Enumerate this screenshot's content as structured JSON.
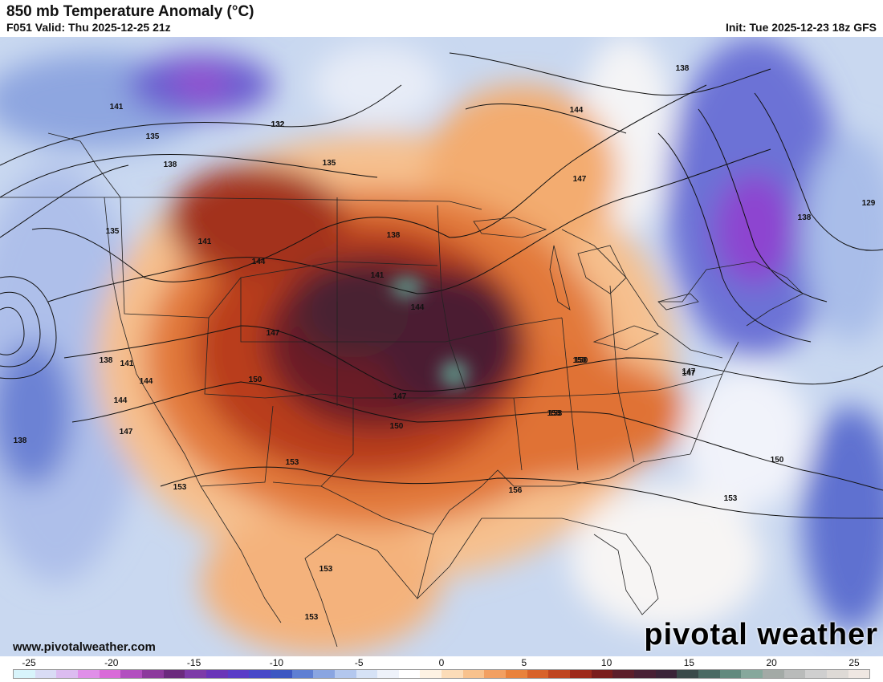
{
  "header": {
    "title": "850 mb Temperature Anomaly (°C)",
    "valid": "F051 Valid: Thu 2025-12-25 21z",
    "init": "Init: Tue 2025-12-23 18z GFS"
  },
  "footer": {
    "website": "www.pivotalweather.com",
    "brand": "pivotal weather"
  },
  "colorbar": {
    "ticks": [
      "-25",
      "-20",
      "-15",
      "-10",
      "-5",
      "0",
      "5",
      "10",
      "15",
      "20",
      "25"
    ],
    "colors": [
      "#d8f4fb",
      "#d9dcf5",
      "#dcbcf0",
      "#e08fe8",
      "#d96bd8",
      "#b24fbf",
      "#8c3a9c",
      "#6b2b7d",
      "#7d3ba8",
      "#6a35b8",
      "#5a3cc7",
      "#4848c8",
      "#3d57c2",
      "#5f7fd3",
      "#8aa5e1",
      "#b3c7ee",
      "#d6e2f6",
      "#eef2fa",
      "#ffffff",
      "#fdf2e3",
      "#fbdcb8",
      "#f8c28d",
      "#f2a062",
      "#e9823c",
      "#d8622a",
      "#bf4520",
      "#9e2a1b",
      "#7a1d1c",
      "#5c1e2a",
      "#482034",
      "#3a2438",
      "#3a4a4a",
      "#4a6a63",
      "#628a7e",
      "#86a89c",
      "#a3aaa6",
      "#b9bbba",
      "#cfcfcf",
      "#dedad6",
      "#efe7e2"
    ]
  },
  "map": {
    "contour_labels": [
      "132",
      "135",
      "135",
      "138",
      "135",
      "141",
      "144",
      "138",
      "141",
      "144",
      "147",
      "147",
      "138",
      "141",
      "144",
      "150",
      "147",
      "150",
      "150",
      "147",
      "153",
      "153",
      "153",
      "147",
      "153",
      "138",
      "144",
      "150",
      "153",
      "156",
      "153",
      "150",
      "147",
      "141",
      "144",
      "132",
      "129",
      "138",
      "138",
      "153"
    ]
  }
}
